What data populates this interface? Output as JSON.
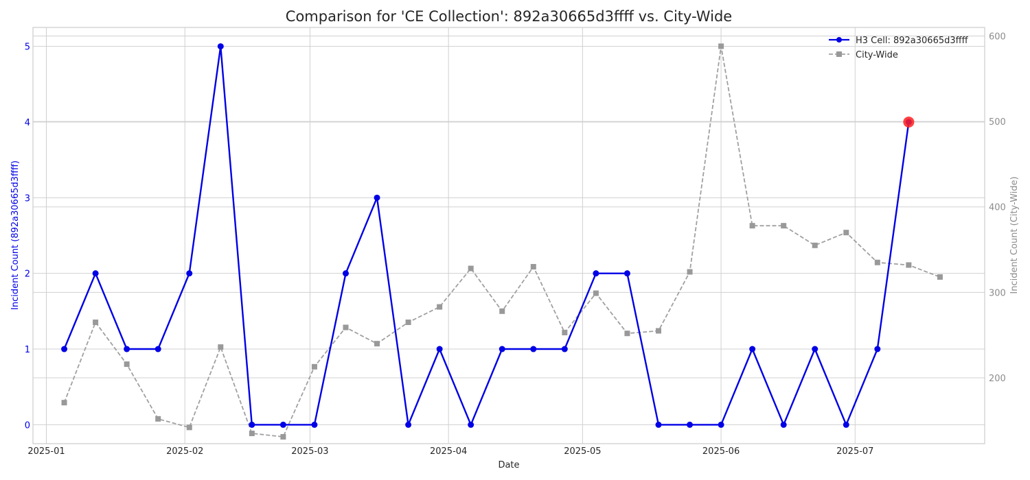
{
  "chart_data": {
    "type": "line",
    "title": "Comparison for 'CE Collection': 892a30665d3ffff vs. City-Wide",
    "xlabel": "Date",
    "ylabel_left": "Incident Count (892a30665d3ffff)",
    "ylabel_right": "Incident Count (City-Wide)",
    "x_ticks": [
      "2025-01",
      "2025-02",
      "2025-03",
      "2025-04",
      "2025-05",
      "2025-06",
      "2025-07"
    ],
    "x_range": [
      "2024-12-29",
      "2025-07-30"
    ],
    "y_left_ticks": [
      0,
      1,
      2,
      3,
      4,
      5
    ],
    "y_left_range": [
      -0.25,
      5.25
    ],
    "y_right_ticks": [
      200,
      300,
      400,
      500,
      600
    ],
    "y_right_range": [
      123,
      610
    ],
    "grid": true,
    "legend_position": "top-right",
    "dates": [
      "2025-01-05",
      "2025-01-12",
      "2025-01-19",
      "2025-01-26",
      "2025-02-02",
      "2025-02-09",
      "2025-02-16",
      "2025-02-23",
      "2025-03-02",
      "2025-03-09",
      "2025-03-16",
      "2025-03-23",
      "2025-03-30",
      "2025-04-06",
      "2025-04-13",
      "2025-04-20",
      "2025-04-27",
      "2025-05-04",
      "2025-05-11",
      "2025-05-18",
      "2025-05-25",
      "2025-06-01",
      "2025-06-08",
      "2025-06-15",
      "2025-06-22",
      "2025-06-29",
      "2025-07-06",
      "2025-07-13",
      "2025-07-20"
    ],
    "series": [
      {
        "name": "H3 Cell: 892a30665d3ffff",
        "axis": "left",
        "color": "#0000e6",
        "marker": "circle",
        "line_style": "solid",
        "values": [
          1,
          2,
          1,
          1,
          2,
          5,
          0,
          0,
          0,
          2,
          3,
          0,
          1,
          0,
          1,
          1,
          1,
          2,
          2,
          0,
          0,
          0,
          1,
          0,
          1,
          0,
          1,
          4,
          null
        ]
      },
      {
        "name": "City-Wide",
        "axis": "right",
        "color": "#a0a0a0",
        "marker": "square",
        "line_style": "dashed",
        "values": [
          171,
          265,
          216,
          152,
          142,
          236,
          135,
          131,
          213,
          259,
          240,
          265,
          283,
          328,
          278,
          330,
          253,
          299,
          252,
          255,
          324,
          588,
          378,
          378,
          355,
          370,
          335,
          332,
          318
        ]
      }
    ],
    "highlight": {
      "date": "2025-07-13",
      "value": 4,
      "color": "#ff2020"
    }
  }
}
